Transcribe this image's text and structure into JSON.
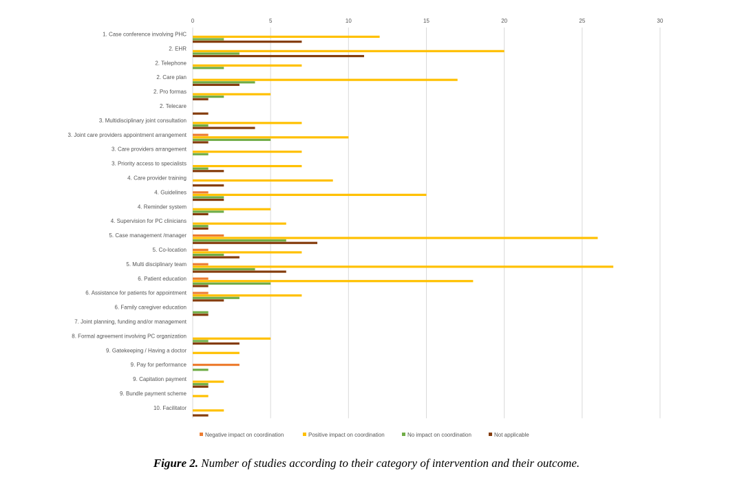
{
  "chart_data": {
    "type": "bar",
    "orientation": "horizontal",
    "xlim": [
      0,
      30
    ],
    "xticks": [
      "0",
      "5",
      "10",
      "15",
      "20",
      "25",
      "30"
    ],
    "grid": true,
    "legend_position": "bottom",
    "categories": [
      "1. Case conference involving PHC",
      "2. EHR",
      "2. Telephone",
      "2. Care plan",
      "2. Pro formas",
      "2. Telecare",
      "3. Multidisciplinary joint consultation",
      "3. Joint care providers appointment arrangement",
      "3. Care providers arrangement",
      "3. Priority access to specialists",
      "4. Care provider training",
      "4. Guidelines",
      "4. Reminder system",
      "4. Supervision for PC clinicians",
      "5. Case management /manager",
      "5. Co-location",
      "5. Multi disciplinary team",
      "6. Patient education",
      "6. Assistance for patients for appointment",
      "6. Family caregiver education",
      "7. Joint planning, funding and/or management",
      "8. Formal agreement involving PC organization",
      "9. Gatekeeping / Having a doctor",
      "9. Pay for performance",
      "9. Capitation payment",
      "9. Bundle payment scheme",
      "10. Facilitator"
    ],
    "series": [
      {
        "name": "Negative impact on coordination",
        "color": "#ed7d31",
        "values": [
          0,
          0,
          0,
          0,
          0,
          0,
          0,
          1,
          0,
          0,
          0,
          1,
          0,
          0,
          2,
          1,
          1,
          1,
          1,
          0,
          0,
          0,
          0,
          3,
          0,
          0,
          0
        ]
      },
      {
        "name": "Positive impact on coordination",
        "color": "#ffc000",
        "values": [
          12,
          20,
          7,
          17,
          5,
          0,
          7,
          10,
          7,
          7,
          9,
          15,
          5,
          6,
          26,
          7,
          27,
          18,
          7,
          0,
          0,
          5,
          3,
          0,
          2,
          1,
          2
        ]
      },
      {
        "name": "No impact on coordination",
        "color": "#70ad47",
        "values": [
          2,
          3,
          2,
          4,
          2,
          0,
          1,
          5,
          1,
          1,
          0,
          2,
          2,
          1,
          6,
          2,
          4,
          5,
          3,
          1,
          0,
          1,
          0,
          1,
          1,
          0,
          0
        ]
      },
      {
        "name": "Not applicable",
        "color": "#843c0c",
        "values": [
          7,
          11,
          0,
          3,
          1,
          1,
          4,
          1,
          0,
          2,
          2,
          2,
          1,
          1,
          8,
          3,
          6,
          1,
          2,
          1,
          0,
          3,
          0,
          0,
          1,
          0,
          1
        ]
      }
    ]
  },
  "caption": {
    "label": "Figure 2.",
    "text": " Number of studies according to their category of intervention and their outcome."
  }
}
